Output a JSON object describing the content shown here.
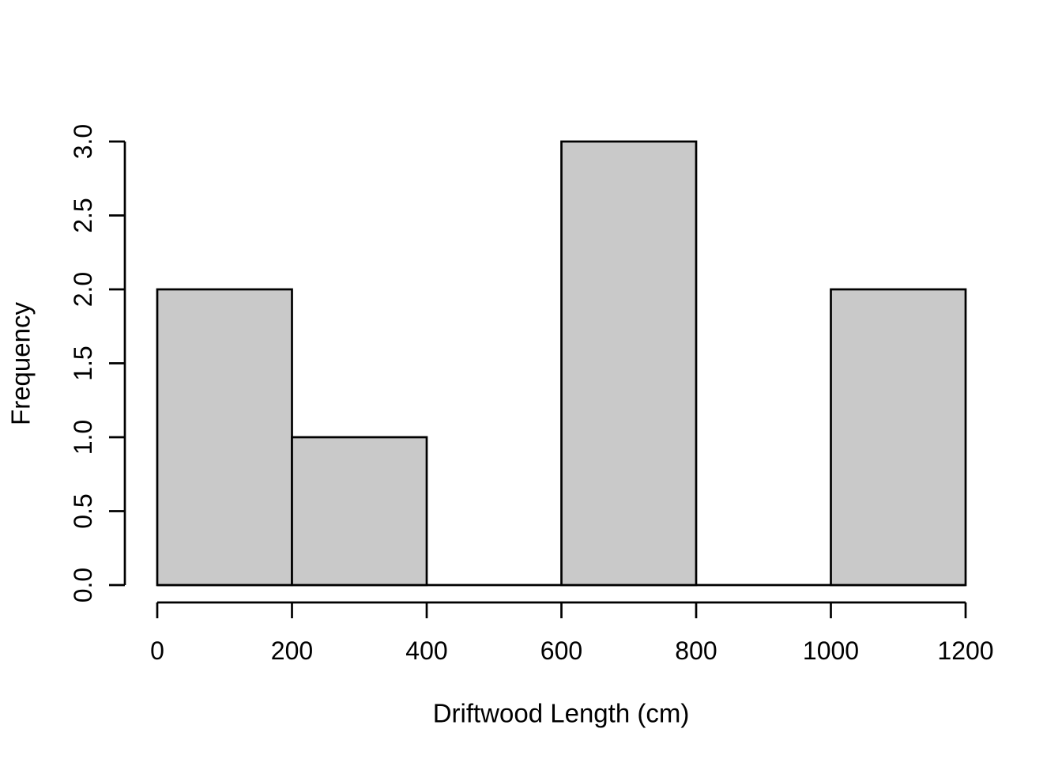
{
  "figure": {
    "background": "#ffffff"
  },
  "chart_data": {
    "type": "bar",
    "subtype": "histogram",
    "title": "",
    "xlabel": "Driftwood Length (cm)",
    "ylabel": "Frequency",
    "bins": [
      {
        "range": [
          0,
          200
        ],
        "count": 2
      },
      {
        "range": [
          200,
          400
        ],
        "count": 1
      },
      {
        "range": [
          400,
          600
        ],
        "count": 0
      },
      {
        "range": [
          600,
          800
        ],
        "count": 3
      },
      {
        "range": [
          800,
          1000
        ],
        "count": 0
      },
      {
        "range": [
          1000,
          1200
        ],
        "count": 2
      }
    ],
    "xlim": [
      0,
      1200
    ],
    "ylim": [
      0,
      3
    ],
    "x_ticks": [
      {
        "value": 0,
        "label": "0"
      },
      {
        "value": 200,
        "label": "200"
      },
      {
        "value": 400,
        "label": "400"
      },
      {
        "value": 600,
        "label": "600"
      },
      {
        "value": 800,
        "label": "800"
      },
      {
        "value": 1000,
        "label": "1000"
      },
      {
        "value": 1200,
        "label": "1200"
      }
    ],
    "y_ticks": [
      {
        "value": 0,
        "label": "0.0"
      },
      {
        "value": 0.5,
        "label": "0.5"
      },
      {
        "value": 1,
        "label": "1.0"
      },
      {
        "value": 1.5,
        "label": "1.5"
      },
      {
        "value": 2,
        "label": "2.0"
      },
      {
        "value": 2.5,
        "label": "2.5"
      },
      {
        "value": 3,
        "label": "3.0"
      }
    ],
    "grid": false,
    "legend": null,
    "bar_fill": "#c9c9c9",
    "bar_stroke": "#000000",
    "axis_color": "#000000",
    "text_color": "#000000"
  }
}
